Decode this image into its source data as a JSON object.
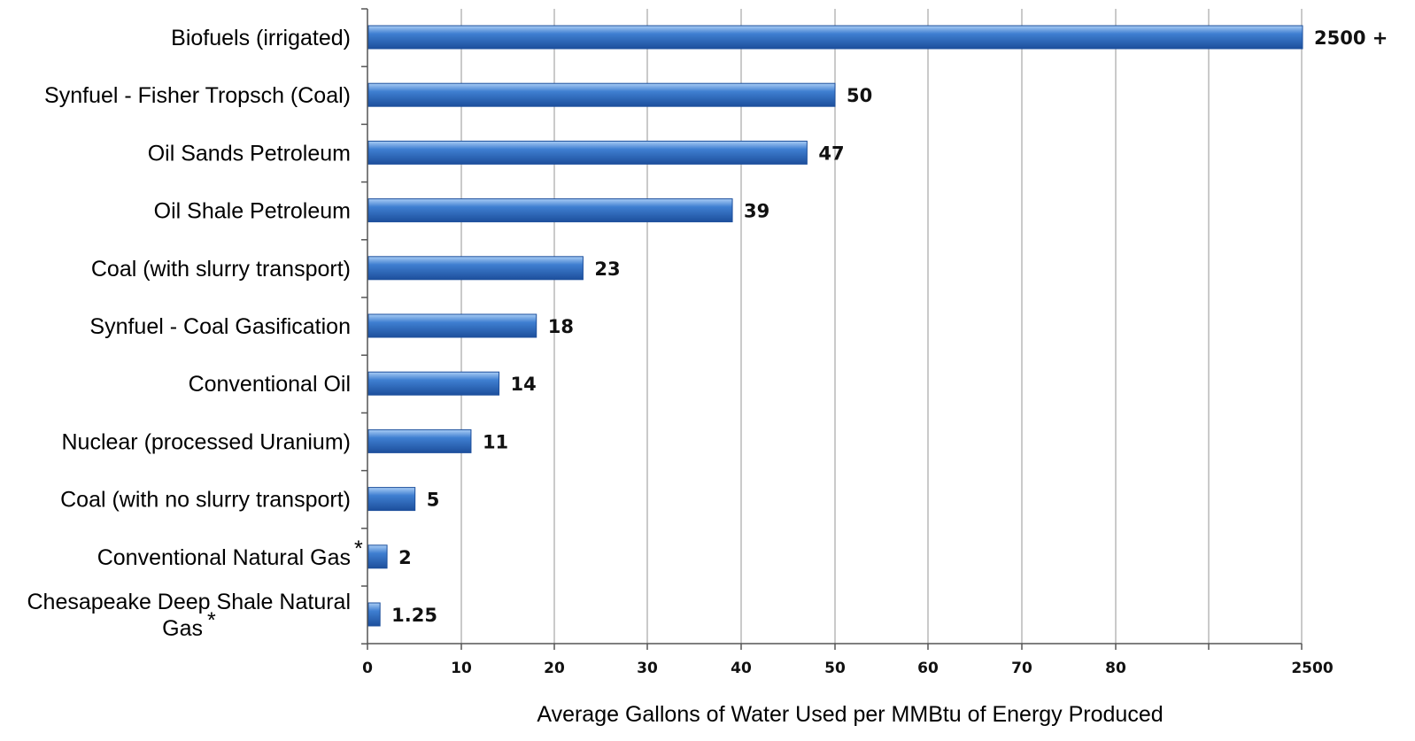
{
  "chart_data": {
    "type": "bar",
    "orientation": "horizontal",
    "categories": [
      "Biofuels (irrigated)",
      "Synfuel - Fisher Tropsch (Coal)",
      "Oil Sands Petroleum",
      "Oil Shale Petroleum",
      "Coal (with slurry transport)",
      "Synfuel - Coal Gasification",
      "Conventional Oil",
      "Nuclear (processed Uranium)",
      "Coal (with no slurry transport)",
      "Conventional Natural Gas",
      "Chesapeake Deep Shale Natural Gas"
    ],
    "asterisk": [
      false,
      false,
      false,
      false,
      false,
      false,
      false,
      false,
      false,
      true,
      true
    ],
    "values": [
      2500,
      50,
      47,
      39,
      23,
      18,
      14,
      11,
      5,
      2,
      1.25
    ],
    "data_labels": [
      "2500 +",
      "50",
      "47",
      "39",
      "23",
      "18",
      "14",
      "11",
      "5",
      "2",
      "1.25"
    ],
    "axis_break": true,
    "x_ticks": [
      "0",
      "10",
      "20",
      "30",
      "40",
      "50",
      "60",
      "70",
      "80",
      "",
      "2500"
    ],
    "xlim": [
      0,
      2500
    ],
    "xlabel": "Average Gallons of Water Used per MMBtu of Energy Produced",
    "ylabel": "",
    "title": "",
    "grid": true,
    "legend": "none",
    "colors": {
      "bar": "#3f7fd1",
      "bar_light": "#a9cdf5",
      "bar_dark": "#1d4f9c",
      "grid": "#a6a6a6",
      "axis": "#555555"
    }
  }
}
